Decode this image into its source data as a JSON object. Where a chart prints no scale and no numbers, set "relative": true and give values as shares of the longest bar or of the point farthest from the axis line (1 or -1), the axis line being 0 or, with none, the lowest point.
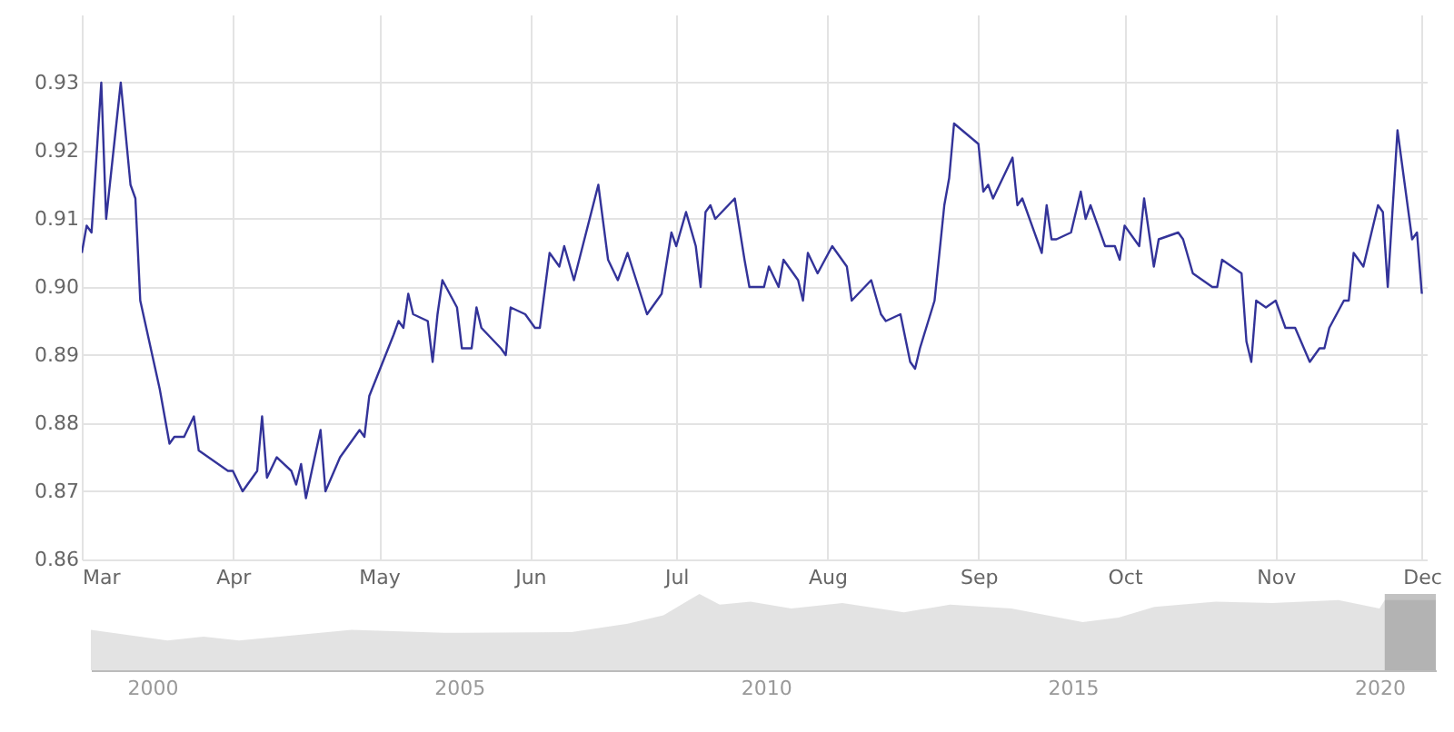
{
  "chart_data": [
    {
      "type": "line",
      "color": "#333399",
      "grid": true,
      "xlim": [
        "--03-01",
        "--12-02"
      ],
      "ylim": [
        0.86,
        0.94
      ],
      "xticks": [
        {
          "value": "--03-01",
          "label": "Mar"
        },
        {
          "value": "--04-01",
          "label": "Apr"
        },
        {
          "value": "--05-01",
          "label": "May"
        },
        {
          "value": "--06-01",
          "label": "Jun"
        },
        {
          "value": "--07-01",
          "label": "Jul"
        },
        {
          "value": "--08-01",
          "label": "Aug"
        },
        {
          "value": "--09-01",
          "label": "Sep"
        },
        {
          "value": "--10-01",
          "label": "Oct"
        },
        {
          "value": "--11-01",
          "label": "Nov"
        },
        {
          "value": "--12-01",
          "label": "Dec"
        }
      ],
      "yticks": [
        0.86,
        0.87,
        0.88,
        0.89,
        {
          "value": 0.9,
          "label": "0.90"
        },
        0.91,
        0.92,
        0.93
      ],
      "x": [
        "--03-01",
        "--03-02",
        "--03-03",
        "--03-05",
        "--03-06",
        "--03-09",
        "--03-11",
        "--03-12",
        "--03-13",
        "--03-17",
        "--03-19",
        "--03-20",
        "--03-22",
        "--03-24",
        "--03-25",
        "--03-31",
        "--04-01",
        "--04-03",
        "--04-06",
        "--04-07",
        "--04-08",
        "--04-10",
        "--04-13",
        "--04-14",
        "--04-15",
        "--04-16",
        "--04-19",
        "--04-20",
        "--04-23",
        "--04-27",
        "--04-28",
        "--04-29",
        "--05-04",
        "--05-05",
        "--05-06",
        "--05-07",
        "--05-08",
        "--05-11",
        "--05-12",
        "--05-13",
        "--05-14",
        "--05-17",
        "--05-18",
        "--05-20",
        "--05-21",
        "--05-22",
        "--05-26",
        "--05-27",
        "--05-28",
        "--05-31",
        "--06-02",
        "--06-03",
        "--06-05",
        "--06-07",
        "--06-08",
        "--06-10",
        "--06-15",
        "--06-17",
        "--06-19",
        "--06-21",
        "--06-25",
        "--06-28",
        "--06-30",
        "--07-01",
        "--07-03",
        "--07-05",
        "--07-06",
        "--07-07",
        "--07-08",
        "--07-09",
        "--07-13",
        "--07-15",
        "--07-16",
        "--07-19",
        "--07-20",
        "--07-22",
        "--07-23",
        "--07-26",
        "--07-27",
        "--07-28",
        "--07-30",
        "--08-02",
        "--08-04",
        "--08-05",
        "--08-06",
        "--08-10",
        "--08-12",
        "--08-13",
        "--08-16",
        "--08-18",
        "--08-19",
        "--08-20",
        "--08-23",
        "--08-25",
        "--08-26",
        "--08-27",
        "--09-01",
        "--09-02",
        "--09-03",
        "--09-04",
        "--09-08",
        "--09-09",
        "--09-10",
        "--09-14",
        "--09-15",
        "--09-16",
        "--09-17",
        "--09-20",
        "--09-22",
        "--09-23",
        "--09-24",
        "--09-27",
        "--09-29",
        "--09-30",
        "--10-01",
        "--10-04",
        "--10-05",
        "--10-07",
        "--10-08",
        "--10-12",
        "--10-13",
        "--10-15",
        "--10-19",
        "--10-20",
        "--10-21",
        "--10-25",
        "--10-26",
        "--10-27",
        "--10-28",
        "--10-30",
        "--11-01",
        "--11-03",
        "--11-05",
        "--11-08",
        "--11-10",
        "--11-11",
        "--11-12",
        "--11-15",
        "--11-16",
        "--11-17",
        "--11-19",
        "--11-22",
        "--11-23",
        "--11-24",
        "--11-26",
        "--11-29",
        "--11-30",
        "--12-01"
      ],
      "values": [
        0.905,
        0.909,
        0.908,
        0.93,
        0.91,
        0.93,
        0.915,
        0.913,
        0.898,
        0.885,
        0.877,
        0.878,
        0.878,
        0.881,
        0.876,
        0.873,
        0.873,
        0.87,
        0.873,
        0.881,
        0.872,
        0.875,
        0.873,
        0.871,
        0.874,
        0.869,
        0.879,
        0.87,
        0.875,
        0.879,
        0.878,
        0.884,
        0.893,
        0.895,
        0.894,
        0.899,
        0.896,
        0.895,
        0.889,
        0.896,
        0.901,
        0.897,
        0.891,
        0.891,
        0.897,
        0.894,
        0.891,
        0.89,
        0.897,
        0.896,
        0.894,
        0.894,
        0.905,
        0.903,
        0.906,
        0.901,
        0.915,
        0.904,
        0.901,
        0.905,
        0.896,
        0.899,
        0.908,
        0.906,
        0.911,
        0.906,
        0.9,
        0.911,
        0.912,
        0.91,
        0.913,
        0.904,
        0.9,
        0.9,
        0.903,
        0.9,
        0.904,
        0.901,
        0.898,
        0.905,
        0.902,
        0.906,
        0.904,
        0.903,
        0.898,
        0.901,
        0.896,
        0.895,
        0.896,
        0.889,
        0.888,
        0.891,
        0.898,
        0.912,
        0.916,
        0.924,
        0.921,
        0.914,
        0.915,
        0.913,
        0.919,
        0.912,
        0.913,
        0.905,
        0.912,
        0.907,
        0.907,
        0.908,
        0.914,
        0.91,
        0.912,
        0.906,
        0.906,
        0.904,
        0.909,
        0.906,
        0.913,
        0.903,
        0.907,
        0.908,
        0.907,
        0.902,
        0.9,
        0.9,
        0.904,
        0.902,
        0.892,
        0.889,
        0.898,
        0.897,
        0.898,
        0.894,
        0.894,
        0.889,
        0.891,
        0.891,
        0.894,
        0.898,
        0.898,
        0.905,
        0.903,
        0.912,
        0.911,
        0.9,
        0.923,
        0.907,
        0.908,
        0.899
      ]
    },
    {
      "type": "area",
      "relative": true,
      "color": "#d9d9d9",
      "tick_labels": "x",
      "xlim": [
        "1999-01",
        "2020-12"
      ],
      "xticks": [
        "2000",
        "2005",
        "2010",
        "2015",
        "2020"
      ],
      "bands": [
        {
          "axis": "x",
          "from": "2020-02",
          "to": "2020-12",
          "color": "#777777"
        }
      ],
      "x": [
        "1999-01",
        "2000-04",
        "2000-11",
        "2001-06",
        "2003-04",
        "2004-10",
        "2006-11",
        "2007-10",
        "2008-05",
        "2008-12",
        "2009-04",
        "2009-10",
        "2010-06",
        "2011-04",
        "2012-04",
        "2013-01",
        "2014-01",
        "2015-03",
        "2015-10",
        "2016-05",
        "2017-05",
        "2018-04",
        "2019-05",
        "2020-01",
        "2020-02",
        "2020-12"
      ],
      "values": [
        0.53,
        0.39,
        0.44,
        0.39,
        0.53,
        0.49,
        0.5,
        0.61,
        0.72,
        1.0,
        0.86,
        0.9,
        0.81,
        0.88,
        0.76,
        0.86,
        0.81,
        0.63,
        0.69,
        0.83,
        0.9,
        0.88,
        0.92,
        0.81,
        0.92,
        0.92
      ]
    }
  ]
}
